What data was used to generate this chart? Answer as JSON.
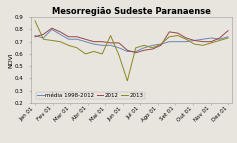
{
  "title": "Mesorregião Sudeste Paranaense",
  "ylabel": "NDVI",
  "ylim": [
    0.2,
    0.9
  ],
  "yticks": [
    0.2,
    0.3,
    0.4,
    0.5,
    0.6,
    0.7,
    0.8,
    0.9
  ],
  "x_labels": [
    "Jan 01",
    "Fev 01",
    "Mar 01",
    "Abr 01",
    "Mai 01",
    "Jun 01",
    "Jul 01",
    "Ago 01",
    "Set 01",
    "Out 01",
    "Nov 01",
    "Dez 01"
  ],
  "media": [
    0.75,
    0.73,
    0.8,
    0.76,
    0.72,
    0.72,
    0.7,
    0.68,
    0.67,
    0.67,
    0.65,
    0.62,
    0.62,
    0.65,
    0.67,
    0.68,
    0.7,
    0.7,
    0.7,
    0.71,
    0.72,
    0.73,
    0.72,
    0.74
  ],
  "y2012": [
    0.74,
    0.76,
    0.81,
    0.78,
    0.74,
    0.74,
    0.72,
    0.7,
    0.7,
    0.69,
    0.69,
    0.63,
    0.61,
    0.63,
    0.64,
    0.67,
    0.78,
    0.77,
    0.73,
    0.71,
    0.7,
    0.7,
    0.73,
    0.79
  ],
  "y2013": [
    0.87,
    0.72,
    0.71,
    0.7,
    0.67,
    0.65,
    0.6,
    0.62,
    0.6,
    0.75,
    0.59,
    0.38,
    0.65,
    0.67,
    0.65,
    0.68,
    0.74,
    0.75,
    0.72,
    0.68,
    0.67,
    0.69,
    0.71,
    0.73
  ],
  "color_media": "#6688bb",
  "color_2012": "#994444",
  "color_2013": "#888822",
  "legend_labels": [
    "média 1998-2012",
    "2012",
    "2013"
  ],
  "title_fontsize": 6.0,
  "label_fontsize": 4.5,
  "tick_fontsize": 4.0,
  "bg_color": "#e8e4de"
}
